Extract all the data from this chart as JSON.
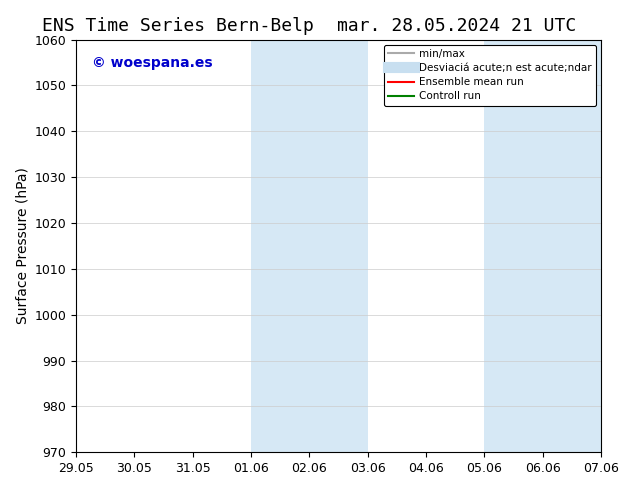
{
  "title_left": "ENS Time Series Bern-Belp",
  "title_right": "mar. 28.05.2024 21 UTC",
  "ylabel": "Surface Pressure (hPa)",
  "ylim": [
    970,
    1060
  ],
  "yticks": [
    970,
    980,
    990,
    1000,
    1010,
    1020,
    1030,
    1040,
    1050,
    1060
  ],
  "xtick_labels": [
    "29.05",
    "30.05",
    "31.05",
    "01.06",
    "02.06",
    "03.06",
    "04.06",
    "05.06",
    "06.06",
    "07.06"
  ],
  "xtick_positions": [
    0,
    1,
    2,
    3,
    4,
    5,
    6,
    7,
    8,
    9
  ],
  "background_color": "#ffffff",
  "plot_bg_color": "#ffffff",
  "shaded_regions": [
    {
      "xmin": 3,
      "xmax": 4,
      "color": "#d6e8f5"
    },
    {
      "xmin": 4,
      "xmax": 5,
      "color": "#d6e8f5"
    },
    {
      "xmin": 7,
      "xmax": 8,
      "color": "#d6e8f5"
    },
    {
      "xmin": 8,
      "xmax": 9,
      "color": "#d6e8f5"
    }
  ],
  "watermark_text": "© woespana.es",
  "watermark_color": "#0000cc",
  "legend_entries": [
    {
      "label": "min/max",
      "color": "#aaaaaa",
      "lw": 1.5
    },
    {
      "label": "Desviaciá acute;n est acute;ndar",
      "color": "#c8dff0",
      "lw": 8
    },
    {
      "label": "Ensemble mean run",
      "color": "#ff0000",
      "lw": 1.5
    },
    {
      "label": "Controll run",
      "color": "#008000",
      "lw": 1.5
    }
  ],
  "title_fontsize": 13,
  "axis_fontsize": 10,
  "tick_fontsize": 9
}
